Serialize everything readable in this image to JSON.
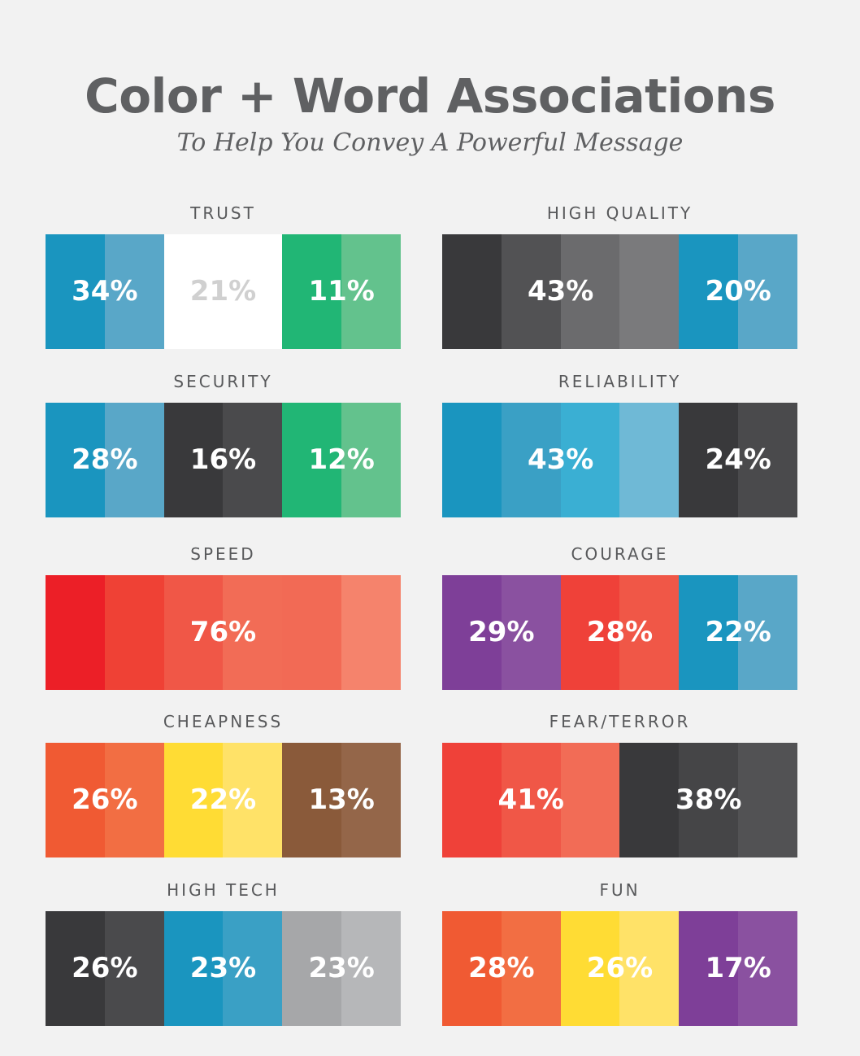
{
  "header": {
    "title": "Color + Word Associations",
    "subtitle": "To Help You Convey A Powerful Message"
  },
  "chart_data": {
    "type": "bar",
    "panels": [
      {
        "label": "TRUST",
        "stripes": [
          "#1a95bf",
          "#59a7c8",
          "#ffffff",
          "#ffffff",
          "#21b675",
          "#63c28d"
        ],
        "segments": [
          {
            "value": "34%",
            "start": 0,
            "span": 2,
            "color": "#ffffff"
          },
          {
            "value": "21%",
            "start": 2,
            "span": 2,
            "color": "#d0d0d0"
          },
          {
            "value": "11%",
            "start": 4,
            "span": 2,
            "color": "#ffffff"
          }
        ]
      },
      {
        "label": "HIGH QUALITY",
        "stripes": [
          "#39393b",
          "#525254",
          "#6b6b6d",
          "#7a7a7c",
          "#1a95bf",
          "#59a7c8"
        ],
        "segments": [
          {
            "value": "43%",
            "start": 0,
            "span": 4,
            "color": "#ffffff"
          },
          {
            "value": "20%",
            "start": 4,
            "span": 2,
            "color": "#ffffff"
          }
        ]
      },
      {
        "label": "SECURITY",
        "stripes": [
          "#1a95bf",
          "#59a7c8",
          "#39393b",
          "#4a4a4c",
          "#21b675",
          "#63c28d"
        ],
        "segments": [
          {
            "value": "28%",
            "start": 0,
            "span": 2,
            "color": "#ffffff"
          },
          {
            "value": "16%",
            "start": 2,
            "span": 2,
            "color": "#ffffff"
          },
          {
            "value": "12%",
            "start": 4,
            "span": 2,
            "color": "#ffffff"
          }
        ]
      },
      {
        "label": "RELIABILITY",
        "stripes": [
          "#1a95bf",
          "#3aa0c5",
          "#3aafd3",
          "#6fb9d6",
          "#39393b",
          "#4a4a4c"
        ],
        "segments": [
          {
            "value": "43%",
            "start": 0,
            "span": 4,
            "color": "#ffffff"
          },
          {
            "value": "24%",
            "start": 4,
            "span": 2,
            "color": "#ffffff"
          }
        ]
      },
      {
        "label": "SPEED",
        "stripes": [
          "#ec1f27",
          "#ef4135",
          "#f05747",
          "#f26c56",
          "#f26a55",
          "#f5836c"
        ],
        "segments": [
          {
            "value": "76%",
            "start": 0,
            "span": 6,
            "color": "#ffffff"
          }
        ]
      },
      {
        "label": "COURAGE",
        "stripes": [
          "#7e3f98",
          "#8a51a0",
          "#ef4139",
          "#f05747",
          "#1a95bf",
          "#59a7c8"
        ],
        "segments": [
          {
            "value": "29%",
            "start": 0,
            "span": 2,
            "color": "#ffffff"
          },
          {
            "value": "28%",
            "start": 2,
            "span": 2,
            "color": "#ffffff"
          },
          {
            "value": "22%",
            "start": 4,
            "span": 2,
            "color": "#ffffff"
          }
        ]
      },
      {
        "label": "CHEAPNESS",
        "stripes": [
          "#f05a33",
          "#f26e43",
          "#ffdc34",
          "#ffe268",
          "#8a5a3a",
          "#946649"
        ],
        "segments": [
          {
            "value": "26%",
            "start": 0,
            "span": 2,
            "color": "#ffffff"
          },
          {
            "value": "22%",
            "start": 2,
            "span": 2,
            "color": "#ffffff"
          },
          {
            "value": "13%",
            "start": 4,
            "span": 2,
            "color": "#ffffff"
          }
        ]
      },
      {
        "label": "FEAR/TERROR",
        "stripes": [
          "#ef4139",
          "#f05747",
          "#f26c56",
          "#39393b",
          "#454547",
          "#525254"
        ],
        "segments": [
          {
            "value": "41%",
            "start": 0,
            "span": 3,
            "color": "#ffffff"
          },
          {
            "value": "38%",
            "start": 3,
            "span": 3,
            "color": "#ffffff"
          }
        ]
      },
      {
        "label": "HIGH TECH",
        "stripes": [
          "#39393b",
          "#4a4a4c",
          "#1a95bf",
          "#3aa0c5",
          "#a6a7a9",
          "#b6b7b9"
        ],
        "segments": [
          {
            "value": "26%",
            "start": 0,
            "span": 2,
            "color": "#ffffff"
          },
          {
            "value": "23%",
            "start": 2,
            "span": 2,
            "color": "#ffffff"
          },
          {
            "value": "23%",
            "start": 4,
            "span": 2,
            "color": "#ffffff"
          }
        ]
      },
      {
        "label": "FUN",
        "stripes": [
          "#f05a33",
          "#f26e43",
          "#ffdc34",
          "#ffe268",
          "#7e3f98",
          "#8a51a0"
        ],
        "segments": [
          {
            "value": "28%",
            "start": 0,
            "span": 2,
            "color": "#ffffff"
          },
          {
            "value": "26%",
            "start": 2,
            "span": 2,
            "color": "#ffffff"
          },
          {
            "value": "17%",
            "start": 4,
            "span": 2,
            "color": "#ffffff"
          }
        ]
      }
    ]
  }
}
